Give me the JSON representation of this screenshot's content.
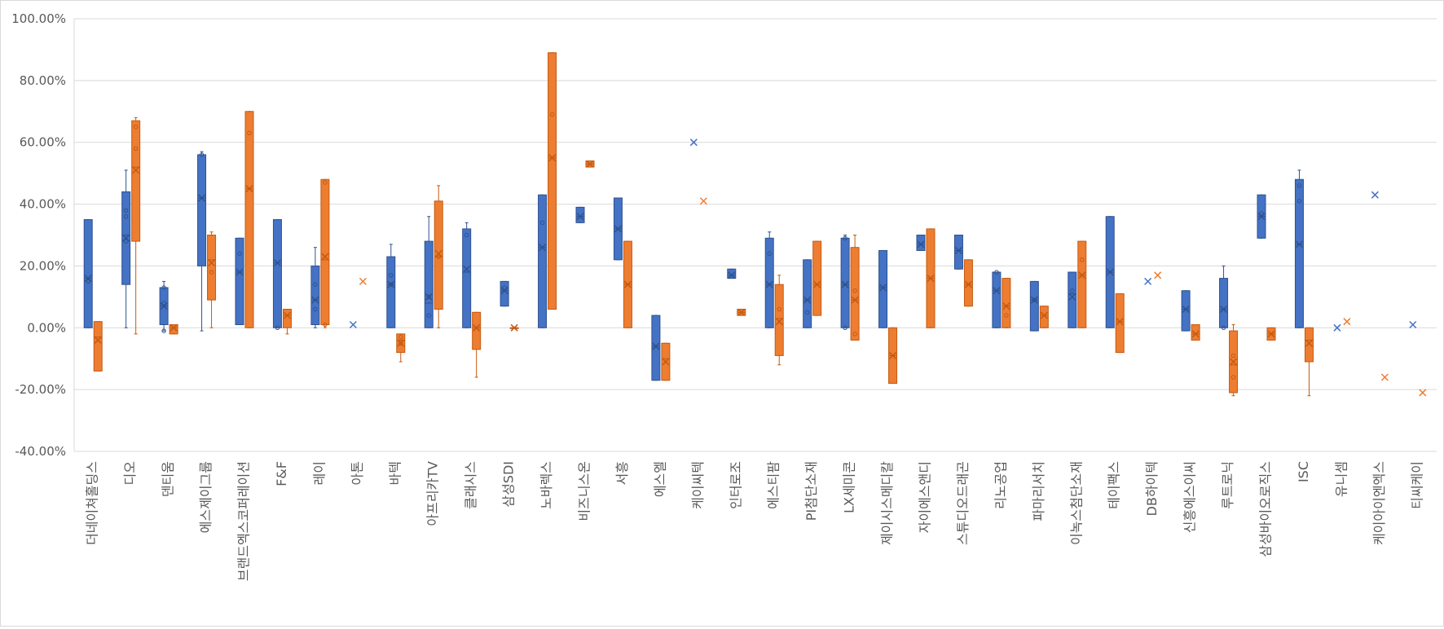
{
  "chart_data": {
    "type": "box",
    "ylim": [
      -0.4,
      1.0
    ],
    "ytick_labels": [
      "100.00%",
      "80.00%",
      "60.00%",
      "40.00%",
      "20.00%",
      "0.00%",
      "-20.00%",
      "-40.00%"
    ],
    "ytick_values": [
      1.0,
      0.8,
      0.6,
      0.4,
      0.2,
      0.0,
      -0.2,
      -0.4
    ],
    "grid": true,
    "legend": "none",
    "colors": {
      "series_a": "#4472C4",
      "series_a_edge": "#2F528F",
      "series_b": "#ED7D31",
      "series_b_edge": "#C55A11"
    },
    "categories": [
      {
        "label": "더네이쳐홀딩스",
        "a": {
          "min": 0.0,
          "q1": 0.0,
          "median": 0.16,
          "q3": 0.35,
          "max": 0.35,
          "mean": 0.16,
          "points": [
            0.15
          ]
        },
        "b": {
          "min": -0.14,
          "q1": -0.14,
          "median": -0.03,
          "q3": 0.02,
          "max": 0.02,
          "mean": -0.04,
          "points": []
        }
      },
      {
        "label": "디오",
        "a": {
          "min": 0.0,
          "q1": 0.14,
          "median": 0.3,
          "q3": 0.44,
          "max": 0.51,
          "mean": 0.29,
          "points": [
            0.28,
            0.36,
            0.38
          ]
        },
        "b": {
          "min": -0.02,
          "q1": 0.28,
          "median": 0.52,
          "q3": 0.67,
          "max": 0.68,
          "mean": 0.51,
          "points": [
            0.58,
            0.65
          ]
        }
      },
      {
        "label": "덴티움",
        "a": {
          "min": -0.01,
          "q1": 0.01,
          "median": 0.07,
          "q3": 0.13,
          "max": 0.15,
          "mean": 0.07,
          "points": [
            -0.01,
            0.08,
            0.13
          ]
        },
        "b": {
          "min": -0.02,
          "q1": -0.02,
          "median": 0.0,
          "q3": 0.01,
          "max": 0.01,
          "mean": 0.0,
          "points": []
        }
      },
      {
        "label": "에스제이그룹",
        "a": {
          "min": -0.01,
          "q1": 0.2,
          "median": 0.42,
          "q3": 0.56,
          "max": 0.57,
          "mean": 0.42,
          "points": [
            0.56
          ]
        },
        "b": {
          "min": 0.0,
          "q1": 0.09,
          "median": 0.22,
          "q3": 0.3,
          "max": 0.31,
          "mean": 0.21,
          "points": [
            0.18
          ]
        }
      },
      {
        "label": "브랜드엑스코퍼레이션",
        "a": {
          "min": 0.01,
          "q1": 0.01,
          "median": 0.18,
          "q3": 0.29,
          "max": 0.29,
          "mean": 0.18,
          "points": [
            0.24
          ]
        },
        "b": {
          "min": 0.0,
          "q1": 0.0,
          "median": 0.45,
          "q3": 0.7,
          "max": 0.7,
          "mean": 0.45,
          "points": [
            0.63
          ]
        }
      },
      {
        "label": "F&F",
        "a": {
          "min": 0.0,
          "q1": 0.0,
          "median": 0.21,
          "q3": 0.35,
          "max": 0.35,
          "mean": 0.21,
          "points": [
            0.0
          ]
        },
        "b": {
          "min": -0.02,
          "q1": 0.0,
          "median": 0.04,
          "q3": 0.06,
          "max": 0.06,
          "mean": 0.04,
          "points": []
        }
      },
      {
        "label": "레이",
        "a": {
          "min": 0.0,
          "q1": 0.01,
          "median": 0.09,
          "q3": 0.2,
          "max": 0.26,
          "mean": 0.09,
          "points": [
            0.06,
            0.14
          ]
        },
        "b": {
          "min": 0.0,
          "q1": 0.01,
          "median": 0.22,
          "q3": 0.48,
          "max": 0.48,
          "mean": 0.23,
          "points": [
            0.01,
            0.47
          ]
        }
      },
      {
        "label": "아톤",
        "a": {
          "min": null,
          "q1": null,
          "median": null,
          "q3": null,
          "max": null,
          "mean": 0.01,
          "points": []
        },
        "b": {
          "min": null,
          "q1": null,
          "median": null,
          "q3": null,
          "max": null,
          "mean": 0.15,
          "points": []
        }
      },
      {
        "label": "바텍",
        "a": {
          "min": 0.0,
          "q1": 0.0,
          "median": 0.14,
          "q3": 0.23,
          "max": 0.27,
          "mean": 0.14,
          "points": [
            0.14,
            0.17
          ]
        },
        "b": {
          "min": -0.11,
          "q1": -0.08,
          "median": -0.04,
          "q3": -0.02,
          "max": -0.02,
          "mean": -0.05,
          "points": [
            -0.05,
            -0.03
          ]
        }
      },
      {
        "label": "아프리카TV",
        "a": {
          "min": 0.0,
          "q1": 0.0,
          "median": 0.08,
          "q3": 0.28,
          "max": 0.36,
          "mean": 0.1,
          "points": [
            0.04,
            0.1
          ]
        },
        "b": {
          "min": 0.0,
          "q1": 0.06,
          "median": 0.23,
          "q3": 0.41,
          "max": 0.46,
          "mean": 0.24,
          "points": [
            0.23
          ]
        }
      },
      {
        "label": "클래시스",
        "a": {
          "min": 0.0,
          "q1": 0.0,
          "median": 0.18,
          "q3": 0.32,
          "max": 0.34,
          "mean": 0.19,
          "points": [
            0.3
          ]
        },
        "b": {
          "min": -0.16,
          "q1": -0.07,
          "median": 0.0,
          "q3": 0.05,
          "max": 0.05,
          "mean": 0.0,
          "points": []
        }
      },
      {
        "label": "삼성SDI",
        "a": {
          "min": 0.07,
          "q1": 0.07,
          "median": 0.12,
          "q3": 0.15,
          "max": 0.15,
          "mean": 0.12,
          "points": [
            0.13
          ]
        },
        "b": {
          "min": 0.0,
          "q1": 0.0,
          "median": 0.0,
          "q3": 0.0,
          "max": 0.0,
          "mean": 0.0,
          "points": []
        }
      },
      {
        "label": "노바렉스",
        "a": {
          "min": 0.0,
          "q1": 0.0,
          "median": 0.26,
          "q3": 0.43,
          "max": 0.43,
          "mean": 0.26,
          "points": [
            0.34
          ]
        },
        "b": {
          "min": 0.06,
          "q1": 0.06,
          "median": 0.55,
          "q3": 0.89,
          "max": 0.89,
          "mean": 0.55,
          "points": [
            0.69
          ]
        }
      },
      {
        "label": "비즈니스온",
        "a": {
          "min": 0.34,
          "q1": 0.34,
          "median": 0.36,
          "q3": 0.39,
          "max": 0.39,
          "mean": 0.36,
          "points": []
        },
        "b": {
          "min": 0.52,
          "q1": 0.52,
          "median": 0.53,
          "q3": 0.54,
          "max": 0.54,
          "mean": 0.53,
          "points": []
        }
      },
      {
        "label": "서흥",
        "a": {
          "min": 0.22,
          "q1": 0.22,
          "median": 0.32,
          "q3": 0.42,
          "max": 0.42,
          "mean": 0.32,
          "points": []
        },
        "b": {
          "min": 0.0,
          "q1": 0.0,
          "median": 0.14,
          "q3": 0.28,
          "max": 0.28,
          "mean": 0.14,
          "points": []
        }
      },
      {
        "label": "에스엘",
        "a": {
          "min": -0.17,
          "q1": -0.17,
          "median": -0.06,
          "q3": 0.04,
          "max": 0.04,
          "mean": -0.06,
          "points": []
        },
        "b": {
          "min": -0.17,
          "q1": -0.17,
          "median": -0.1,
          "q3": -0.05,
          "max": -0.05,
          "mean": -0.11,
          "points": []
        }
      },
      {
        "label": "케이씨텍",
        "a": {
          "min": null,
          "q1": null,
          "median": null,
          "q3": null,
          "max": null,
          "mean": 0.6,
          "points": []
        },
        "b": {
          "min": null,
          "q1": null,
          "median": null,
          "q3": null,
          "max": null,
          "mean": 0.41,
          "points": []
        }
      },
      {
        "label": "인터로조",
        "a": {
          "min": 0.16,
          "q1": 0.16,
          "median": 0.17,
          "q3": 0.19,
          "max": 0.19,
          "mean": 0.17,
          "points": []
        },
        "b": {
          "min": 0.04,
          "q1": 0.04,
          "median": 0.05,
          "q3": 0.06,
          "max": 0.06,
          "mean": 0.05,
          "points": []
        }
      },
      {
        "label": "에스티팜",
        "a": {
          "min": 0.0,
          "q1": 0.0,
          "median": 0.14,
          "q3": 0.29,
          "max": 0.31,
          "mean": 0.14,
          "points": [
            0.24
          ]
        },
        "b": {
          "min": -0.12,
          "q1": -0.09,
          "median": 0.03,
          "q3": 0.14,
          "max": 0.17,
          "mean": 0.02,
          "points": [
            0.06
          ]
        }
      },
      {
        "label": "PI첨단소재",
        "a": {
          "min": 0.0,
          "q1": 0.0,
          "median": 0.09,
          "q3": 0.22,
          "max": 0.22,
          "mean": 0.09,
          "points": [
            0.05
          ]
        },
        "b": {
          "min": 0.04,
          "q1": 0.04,
          "median": 0.14,
          "q3": 0.28,
          "max": 0.28,
          "mean": 0.14,
          "points": []
        }
      },
      {
        "label": "LX세미콘",
        "a": {
          "min": 0.0,
          "q1": 0.0,
          "median": 0.14,
          "q3": 0.29,
          "max": 0.3,
          "mean": 0.14,
          "points": [
            0.0,
            0.29
          ]
        },
        "b": {
          "min": -0.04,
          "q1": -0.04,
          "median": 0.09,
          "q3": 0.26,
          "max": 0.3,
          "mean": 0.09,
          "points": [
            -0.02,
            0.12
          ]
        }
      },
      {
        "label": "제이시스메디칼",
        "a": {
          "min": 0.0,
          "q1": 0.0,
          "median": 0.13,
          "q3": 0.25,
          "max": 0.25,
          "mean": 0.13,
          "points": []
        },
        "b": {
          "min": -0.18,
          "q1": -0.18,
          "median": -0.09,
          "q3": 0.0,
          "max": 0.0,
          "mean": -0.09,
          "points": []
        }
      },
      {
        "label": "자이에스앤디",
        "a": {
          "min": 0.25,
          "q1": 0.25,
          "median": 0.27,
          "q3": 0.3,
          "max": 0.3,
          "mean": 0.27,
          "points": []
        },
        "b": {
          "min": 0.0,
          "q1": 0.0,
          "median": 0.16,
          "q3": 0.32,
          "max": 0.32,
          "mean": 0.16,
          "points": []
        }
      },
      {
        "label": "스튜디오드래곤",
        "a": {
          "min": 0.19,
          "q1": 0.19,
          "median": 0.25,
          "q3": 0.3,
          "max": 0.3,
          "mean": 0.25,
          "points": []
        },
        "b": {
          "min": 0.07,
          "q1": 0.07,
          "median": 0.14,
          "q3": 0.22,
          "max": 0.22,
          "mean": 0.14,
          "points": []
        }
      },
      {
        "label": "리노공업",
        "a": {
          "min": 0.0,
          "q1": 0.0,
          "median": 0.12,
          "q3": 0.18,
          "max": 0.18,
          "mean": 0.12,
          "points": [
            0.18
          ]
        },
        "b": {
          "min": 0.0,
          "q1": 0.0,
          "median": 0.07,
          "q3": 0.16,
          "max": 0.16,
          "mean": 0.07,
          "points": [
            0.04
          ]
        }
      },
      {
        "label": "파마리서치",
        "a": {
          "min": -0.01,
          "q1": -0.01,
          "median": 0.09,
          "q3": 0.15,
          "max": 0.15,
          "mean": 0.09,
          "points": [
            0.09
          ]
        },
        "b": {
          "min": 0.0,
          "q1": 0.0,
          "median": 0.04,
          "q3": 0.07,
          "max": 0.07,
          "mean": 0.04,
          "points": []
        }
      },
      {
        "label": "이녹스첨단소재",
        "a": {
          "min": 0.0,
          "q1": 0.0,
          "median": 0.11,
          "q3": 0.18,
          "max": 0.18,
          "mean": 0.1,
          "points": [
            0.12
          ]
        },
        "b": {
          "min": 0.0,
          "q1": 0.0,
          "median": 0.17,
          "q3": 0.28,
          "max": 0.28,
          "mean": 0.17,
          "points": [
            0.22
          ]
        }
      },
      {
        "label": "테이팩스",
        "a": {
          "min": 0.0,
          "q1": 0.0,
          "median": 0.18,
          "q3": 0.36,
          "max": 0.36,
          "mean": 0.18,
          "points": []
        },
        "b": {
          "min": -0.08,
          "q1": -0.08,
          "median": 0.02,
          "q3": 0.11,
          "max": 0.11,
          "mean": 0.02,
          "points": []
        }
      },
      {
        "label": "DB하이텍",
        "a": {
          "min": null,
          "q1": null,
          "median": null,
          "q3": null,
          "max": null,
          "mean": 0.15,
          "points": []
        },
        "b": {
          "min": null,
          "q1": null,
          "median": null,
          "q3": null,
          "max": null,
          "mean": 0.17,
          "points": []
        }
      },
      {
        "label": "신흥에스이씨",
        "a": {
          "min": -0.01,
          "q1": -0.01,
          "median": 0.06,
          "q3": 0.12,
          "max": 0.12,
          "mean": 0.06,
          "points": []
        },
        "b": {
          "min": -0.04,
          "q1": -0.04,
          "median": -0.02,
          "q3": 0.01,
          "max": 0.01,
          "mean": -0.02,
          "points": []
        }
      },
      {
        "label": "루트로닉",
        "a": {
          "min": 0.0,
          "q1": 0.0,
          "median": 0.06,
          "q3": 0.16,
          "max": 0.2,
          "mean": 0.06,
          "points": [
            0.0
          ]
        },
        "b": {
          "min": -0.22,
          "q1": -0.21,
          "median": -0.12,
          "q3": -0.01,
          "max": 0.01,
          "mean": -0.11,
          "points": [
            -0.16,
            -0.09
          ]
        }
      },
      {
        "label": "삼성바이오로직스",
        "a": {
          "min": 0.29,
          "q1": 0.29,
          "median": 0.36,
          "q3": 0.43,
          "max": 0.43,
          "mean": 0.36,
          "points": [
            0.37
          ]
        },
        "b": {
          "min": -0.04,
          "q1": -0.04,
          "median": -0.02,
          "q3": 0.0,
          "max": 0.0,
          "mean": -0.02,
          "points": []
        }
      },
      {
        "label": "ISC",
        "a": {
          "min": 0.0,
          "q1": 0.0,
          "median": 0.27,
          "q3": 0.48,
          "max": 0.51,
          "mean": 0.27,
          "points": [
            0.41,
            0.46
          ]
        },
        "b": {
          "min": -0.22,
          "q1": -0.11,
          "median": -0.04,
          "q3": 0.0,
          "max": 0.0,
          "mean": -0.05,
          "points": []
        }
      },
      {
        "label": "유니셈",
        "a": {
          "min": null,
          "q1": null,
          "median": null,
          "q3": null,
          "max": null,
          "mean": 0.0,
          "points": []
        },
        "b": {
          "min": null,
          "q1": null,
          "median": null,
          "q3": null,
          "max": null,
          "mean": 0.02,
          "points": []
        }
      },
      {
        "label": "케이아이엔엑스",
        "a": {
          "min": null,
          "q1": null,
          "median": null,
          "q3": null,
          "max": null,
          "mean": 0.43,
          "points": []
        },
        "b": {
          "min": null,
          "q1": null,
          "median": null,
          "q3": null,
          "max": null,
          "mean": -0.16,
          "points": []
        }
      },
      {
        "label": "티씨케이",
        "a": {
          "min": null,
          "q1": null,
          "median": null,
          "q3": null,
          "max": null,
          "mean": 0.01,
          "points": []
        },
        "b": {
          "min": null,
          "q1": null,
          "median": null,
          "q3": null,
          "max": null,
          "mean": -0.21,
          "points": []
        }
      }
    ]
  }
}
